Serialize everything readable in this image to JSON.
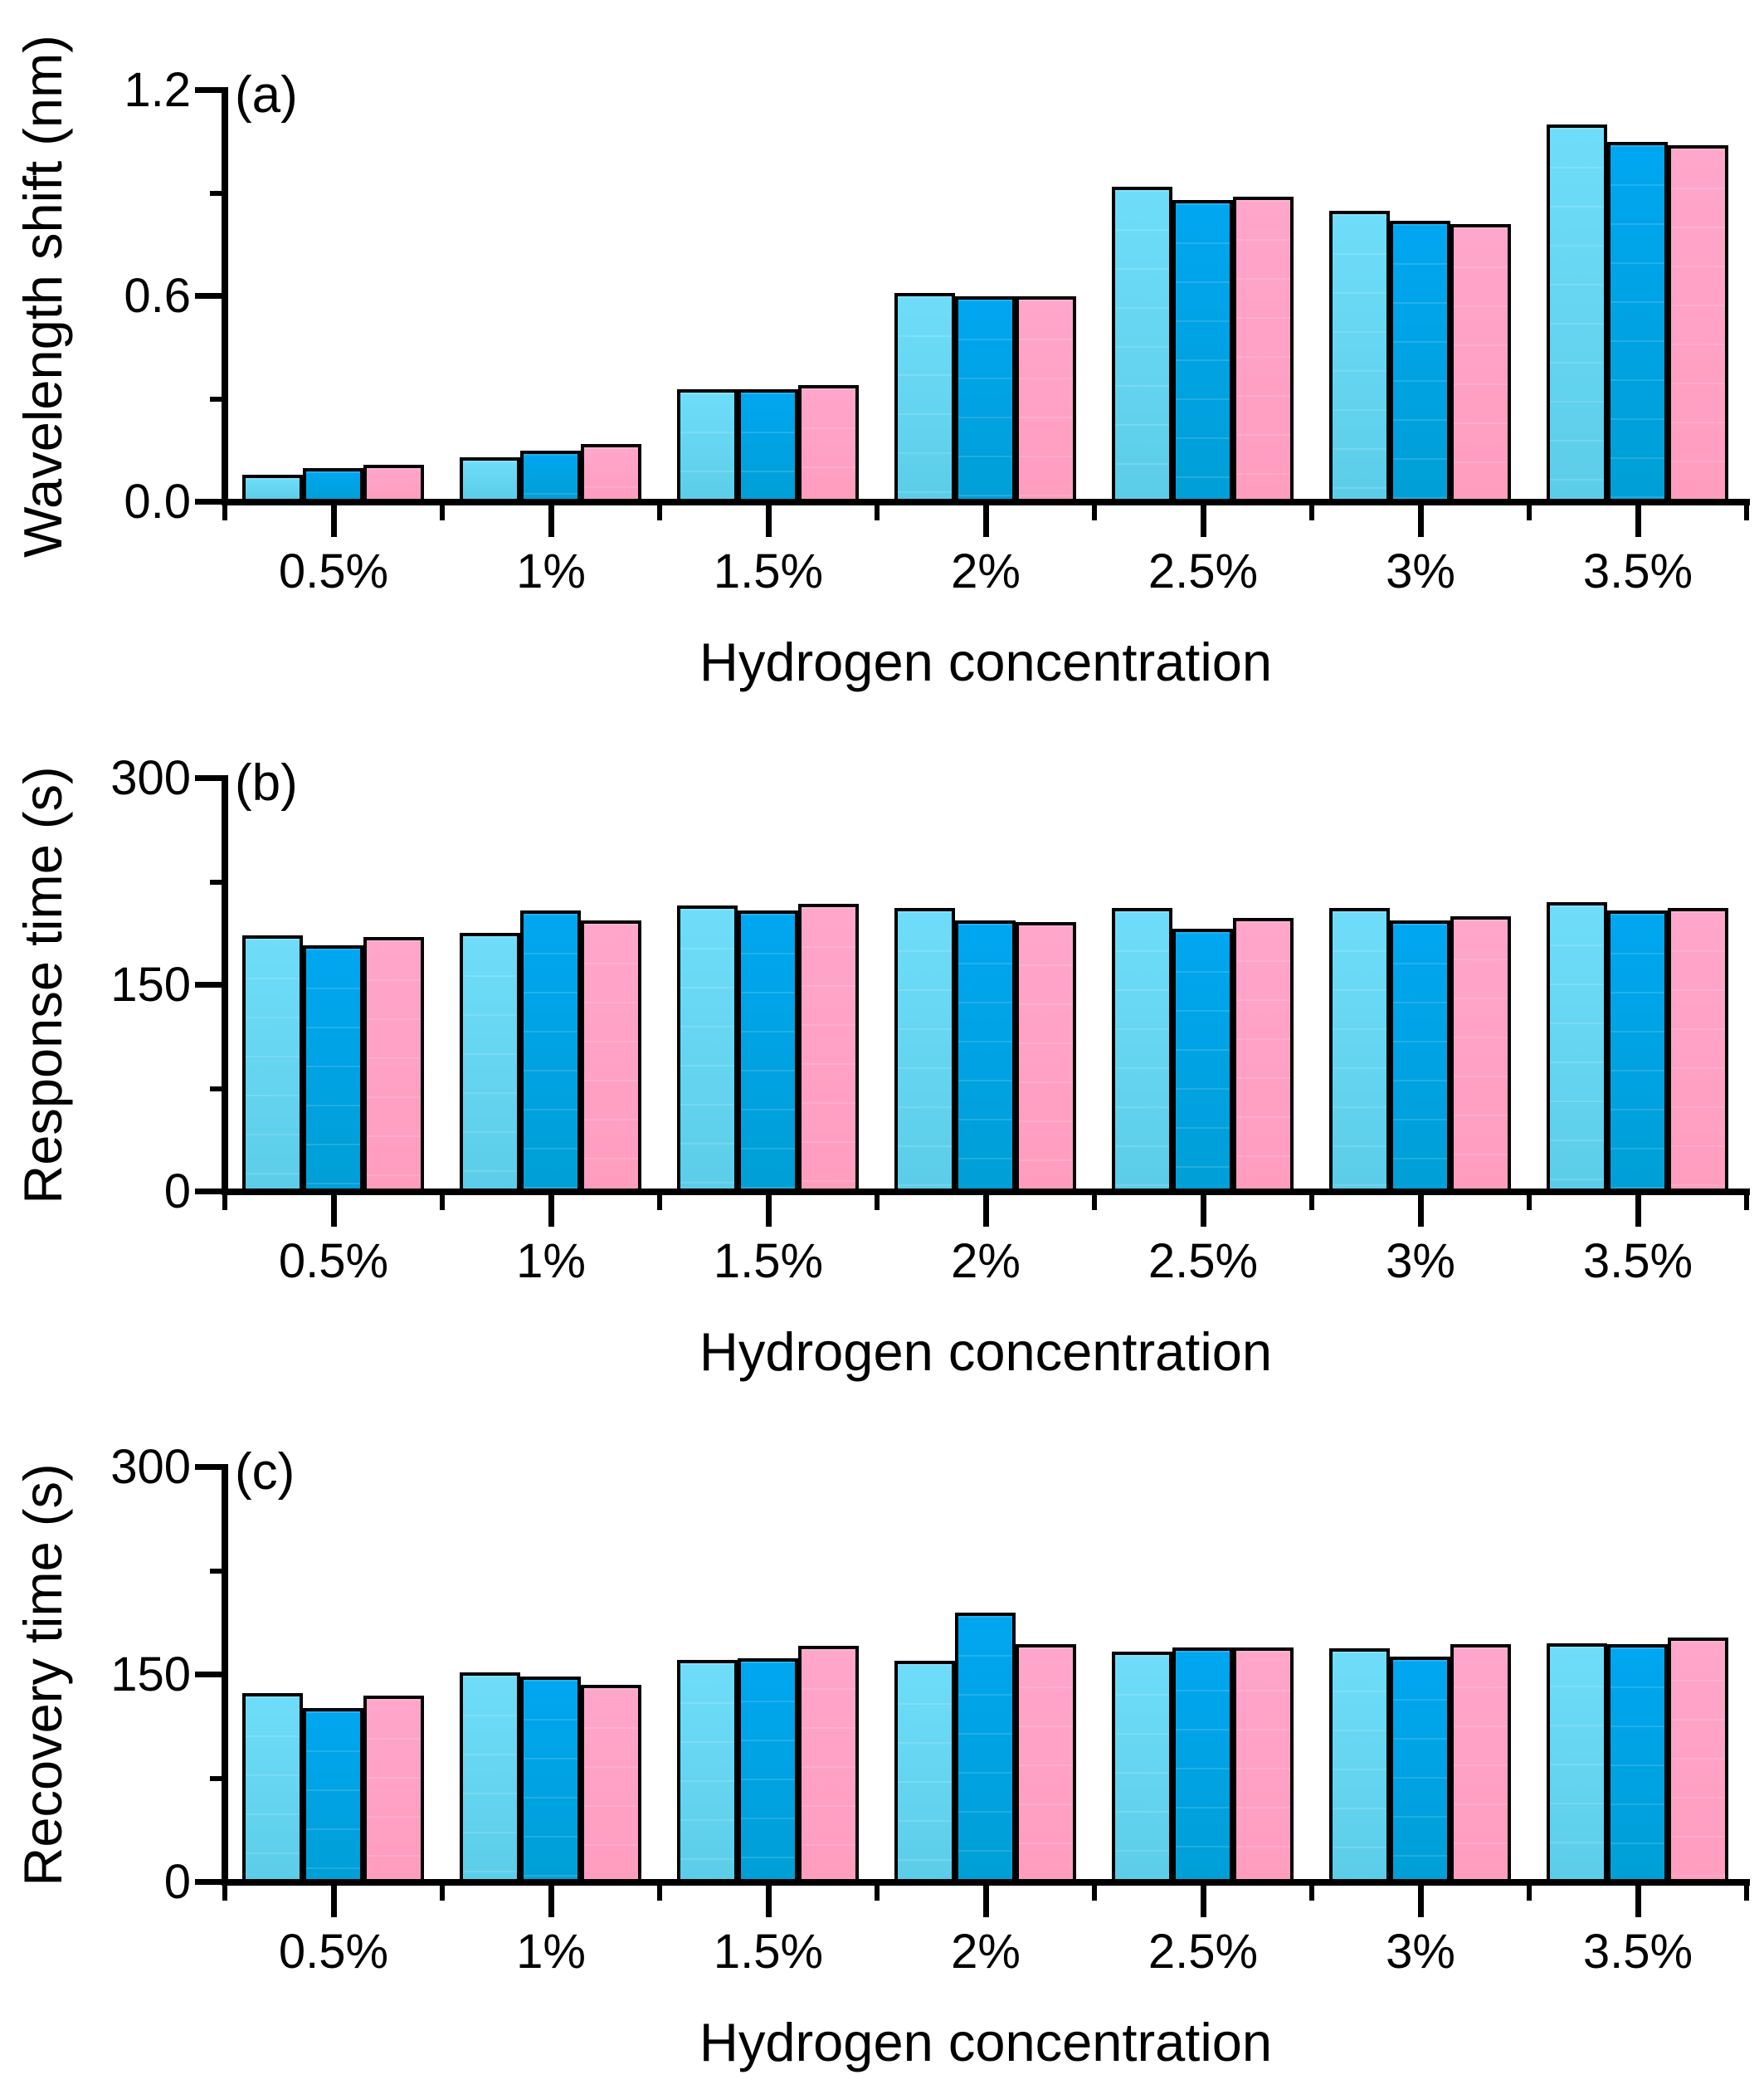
{
  "figure_title": "",
  "xlabel": "Hydrogen concentration",
  "categories": [
    "0.5%",
    "1%",
    "1.5%",
    "2%",
    "2.5%",
    "3%",
    "3.5%"
  ],
  "series_styles": [
    {
      "name": "light-blue-bar",
      "fill_top": "#6FDDFA",
      "fill_bottom": "#5CCDE9"
    },
    {
      "name": "blue-bar",
      "fill_top": "#00A6F0",
      "fill_bottom": "#009FD6"
    },
    {
      "name": "pink-bar",
      "fill_top": "#FFA6CB",
      "fill_bottom": "#FF9DBE"
    }
  ],
  "bar_border_color": "#000000",
  "axis_color": "#000000",
  "chart_data": [
    {
      "type": "bar",
      "panel_label": "(a)",
      "ylabel": "Wavelength shift (nm)",
      "xlabel": "Hydrogen concentration",
      "categories": [
        "0.5%",
        "1%",
        "1.5%",
        "2%",
        "2.5%",
        "3%",
        "3.5%"
      ],
      "ylim": [
        0,
        1.2
      ],
      "yticks": [
        {
          "v": 0.0,
          "label": "0.0"
        },
        {
          "v": 0.6,
          "label": "0.6"
        },
        {
          "v": 1.2,
          "label": "1.2"
        }
      ],
      "minor_yticks": [
        0.3,
        0.9
      ],
      "grid": false,
      "legend": "none",
      "series": [
        {
          "name": "light-blue-bar",
          "values": [
            0.08,
            0.13,
            0.33,
            0.61,
            0.92,
            0.85,
            1.1
          ]
        },
        {
          "name": "blue-bar",
          "values": [
            0.1,
            0.15,
            0.33,
            0.6,
            0.88,
            0.82,
            1.05
          ]
        },
        {
          "name": "pink-bar",
          "values": [
            0.11,
            0.17,
            0.34,
            0.6,
            0.89,
            0.81,
            1.04
          ]
        }
      ]
    },
    {
      "type": "bar",
      "panel_label": "(b)",
      "ylabel": "Response time (s)",
      "xlabel": "Hydrogen concentration",
      "categories": [
        "0.5%",
        "1%",
        "1.5%",
        "2%",
        "2.5%",
        "3%",
        "3.5%"
      ],
      "ylim": [
        0,
        300
      ],
      "yticks": [
        {
          "v": 0,
          "label": "0"
        },
        {
          "v": 150,
          "label": "150"
        },
        {
          "v": 300,
          "label": "300"
        }
      ],
      "minor_yticks": [
        75,
        225
      ],
      "grid": false,
      "legend": "none",
      "series": [
        {
          "name": "light-blue-bar",
          "values": [
            186,
            188,
            208,
            206,
            206,
            206,
            210
          ]
        },
        {
          "name": "blue-bar",
          "values": [
            179,
            204,
            204,
            197,
            191,
            197,
            204
          ]
        },
        {
          "name": "pink-bar",
          "values": [
            185,
            197,
            209,
            196,
            199,
            200,
            206
          ]
        }
      ]
    },
    {
      "type": "bar",
      "panel_label": "(c)",
      "ylabel": "Recovery time (s)",
      "xlabel": "Hydrogen concentration",
      "categories": [
        "0.5%",
        "1%",
        "1.5%",
        "2%",
        "2.5%",
        "3%",
        "3.5%"
      ],
      "ylim": [
        0,
        300
      ],
      "yticks": [
        {
          "v": 0,
          "label": "0"
        },
        {
          "v": 150,
          "label": "150"
        },
        {
          "v": 300,
          "label": "300"
        }
      ],
      "minor_yticks": [
        75,
        225
      ],
      "grid": false,
      "legend": "none",
      "series": [
        {
          "name": "light-blue-bar",
          "values": [
            137,
            152,
            161,
            160,
            167,
            169,
            173
          ]
        },
        {
          "name": "blue-bar",
          "values": [
            126,
            149,
            162,
            195,
            170,
            163,
            172
          ]
        },
        {
          "name": "pink-bar",
          "values": [
            135,
            143,
            171,
            172,
            170,
            172,
            177
          ]
        }
      ]
    }
  ]
}
